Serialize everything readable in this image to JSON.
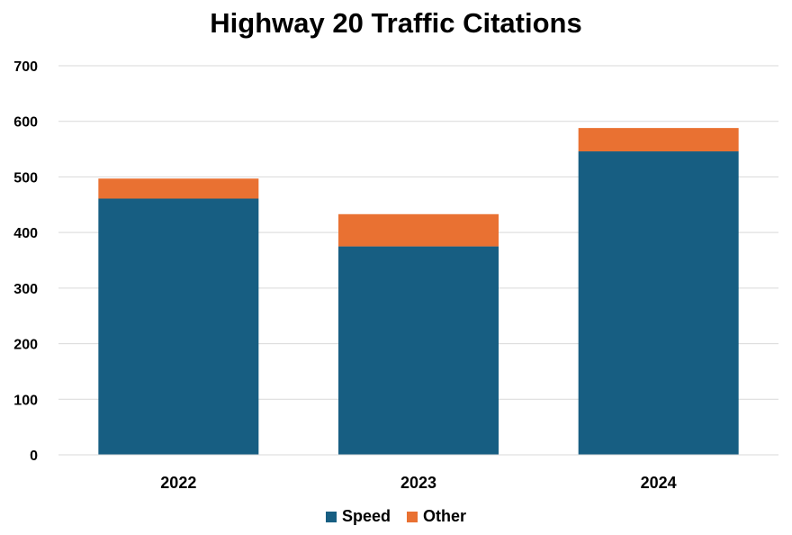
{
  "chart_data": {
    "type": "bar",
    "stacked": true,
    "title": "Highway 20 Traffic Citations",
    "xlabel": "",
    "ylabel": "",
    "categories": [
      "2022",
      "2023",
      "2024"
    ],
    "series": [
      {
        "name": "Speed",
        "color": "#175E82",
        "values": [
          461,
          375,
          546
        ]
      },
      {
        "name": "Other",
        "color": "#E97132",
        "values": [
          36,
          58,
          42
        ]
      }
    ],
    "ylim": [
      0,
      700
    ],
    "yticks": [
      "0",
      "100",
      "200",
      "300",
      "400",
      "500",
      "600",
      "700"
    ],
    "grid": true,
    "legend_position": "bottom"
  }
}
